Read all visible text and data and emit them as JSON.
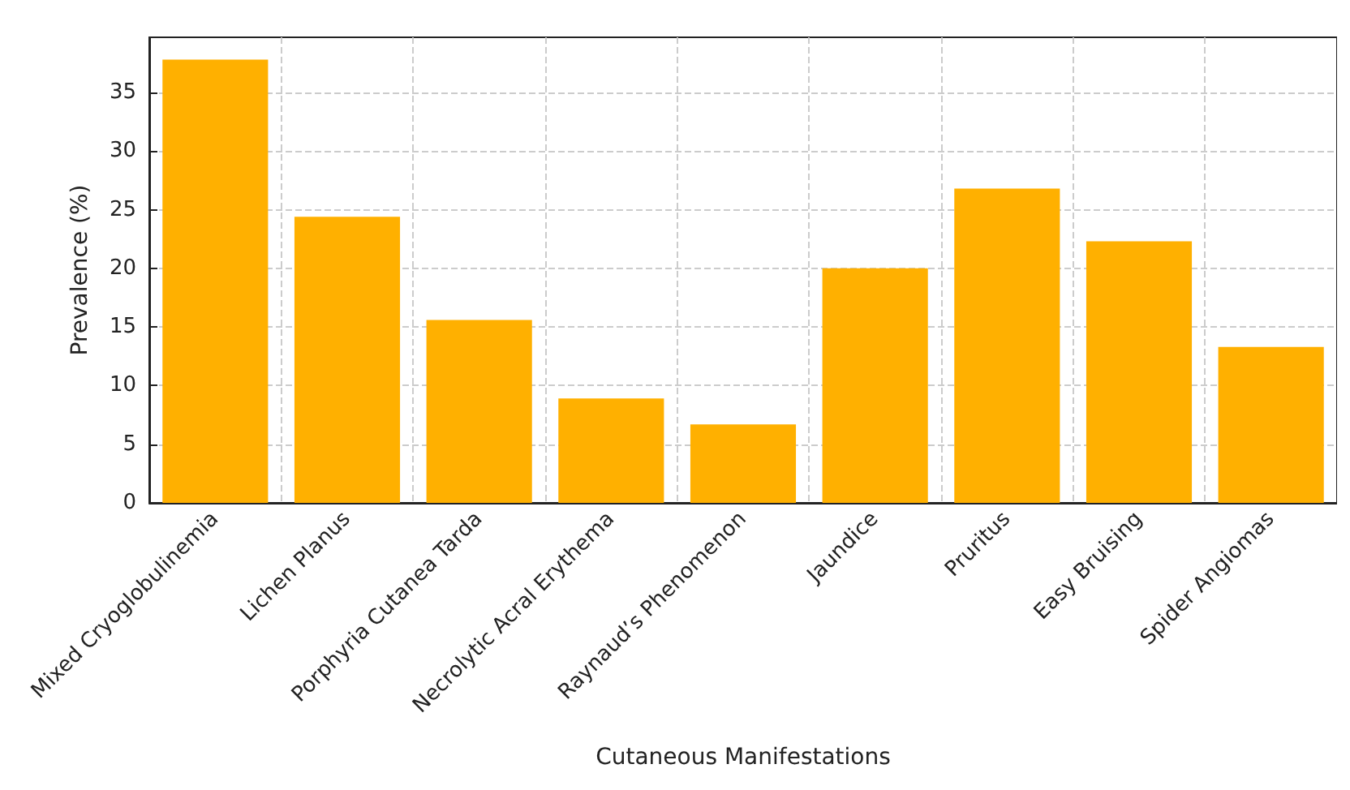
{
  "chart_data": {
    "type": "bar",
    "xlabel": "Cutaneous Manifestations",
    "ylabel": "Prevalence (%)",
    "categories": [
      "Mixed Cryoglobulinemia",
      "Lichen Planus",
      "Porphyria Cutanea Tarda",
      "Necrolytic Acral Erythema",
      "Raynaud’s Phenomenon",
      "Jaundice",
      "Pruritus",
      "Easy Bruising",
      "Spider Angiomas"
    ],
    "values": [
      37.8,
      24.4,
      15.6,
      8.9,
      6.7,
      20.0,
      26.8,
      22.3,
      13.3
    ],
    "color": "#ffb000",
    "ylim": [
      0,
      39.7
    ],
    "yticks": [
      0,
      5,
      10,
      15,
      20,
      25,
      30,
      35
    ],
    "grid": true
  }
}
